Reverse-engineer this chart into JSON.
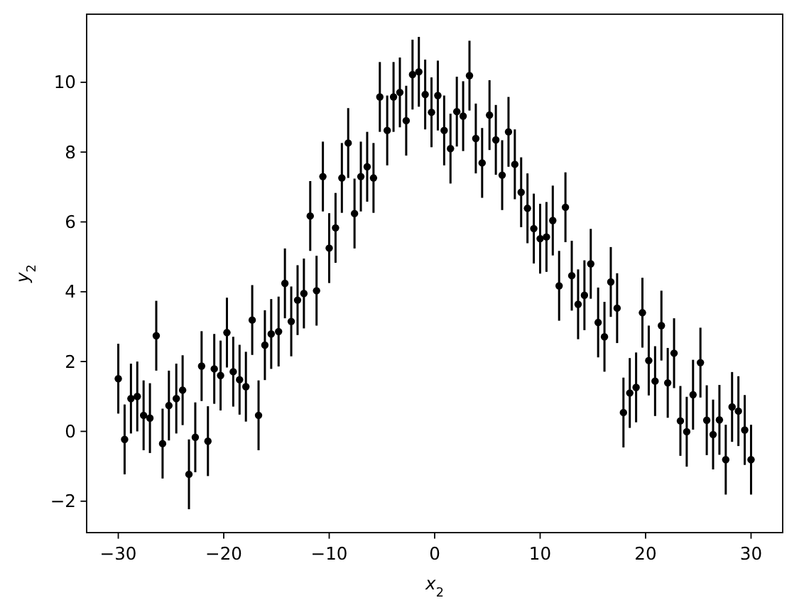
{
  "chart_data": {
    "type": "scatter",
    "xlabel": "x$_{2}$",
    "ylabel": "y$_{2}$",
    "color": "#000000",
    "marker": "circle",
    "xlim": [
      -33,
      33
    ],
    "ylim": [
      -2.9,
      11.95
    ],
    "xticks": [
      -30,
      -20,
      -10,
      0,
      10,
      20,
      30
    ],
    "yticks": [
      -2,
      0,
      2,
      4,
      6,
      8,
      10
    ],
    "x": [
      -30,
      -29.4,
      -28.8,
      -28.2,
      -27.6,
      -27,
      -26.4,
      -25.8,
      -25.2,
      -24.5,
      -23.9,
      -23.3,
      -22.7,
      -22.1,
      -21.5,
      -20.9,
      -20.3,
      -19.7,
      -19.1,
      -18.5,
      -17.9,
      -17.3,
      -16.7,
      -16.1,
      -15.5,
      -14.8,
      -14.2,
      -13.6,
      -13,
      -12.4,
      -11.8,
      -11.2,
      -10.6,
      -10,
      -9.4,
      -8.8,
      -8.2,
      -7.6,
      -7,
      -6.4,
      -5.8,
      -5.2,
      -4.5,
      -3.9,
      -3.3,
      -2.7,
      -2.1,
      -1.5,
      -0.9,
      -0.3,
      0.3,
      0.9,
      1.5,
      2.1,
      2.7,
      3.3,
      3.9,
      4.5,
      5.2,
      5.8,
      6.4,
      7,
      7.6,
      8.2,
      8.8,
      9.4,
      10,
      10.6,
      11.2,
      11.8,
      12.4,
      13,
      13.6,
      14.2,
      14.8,
      15.5,
      16.1,
      16.7,
      17.3,
      17.9,
      18.5,
      19.1,
      19.7,
      20.3,
      20.9,
      21.5,
      22.1,
      22.7,
      23.3,
      23.9,
      24.5,
      25.2,
      25.8,
      26.4,
      27,
      27.6,
      28.2,
      28.8,
      29.4,
      30
    ],
    "values": [
      1.51,
      -0.23,
      0.94,
      1.0,
      0.46,
      0.38,
      2.74,
      -0.35,
      0.74,
      0.94,
      1.18,
      -1.23,
      -0.17,
      1.87,
      -0.28,
      1.79,
      1.6,
      2.83,
      1.71,
      1.48,
      1.28,
      3.19,
      0.46,
      2.47,
      2.79,
      2.86,
      4.24,
      3.15,
      3.76,
      3.95,
      6.17,
      4.03,
      7.3,
      5.25,
      5.83,
      7.26,
      8.26,
      6.24,
      7.3,
      7.58,
      7.26,
      9.58,
      8.62,
      9.58,
      9.71,
      8.9,
      10.22,
      10.3,
      9.65,
      9.14,
      9.62,
      8.62,
      8.1,
      9.16,
      9.03,
      10.19,
      8.39,
      7.69,
      9.06,
      8.35,
      7.34,
      8.58,
      7.65,
      6.85,
      6.39,
      5.81,
      5.52,
      5.57,
      6.04,
      4.17,
      6.42,
      4.46,
      3.64,
      3.9,
      4.8,
      3.12,
      2.71,
      4.28,
      3.53,
      0.54,
      1.1,
      1.26,
      3.4,
      2.03,
      1.44,
      3.03,
      1.39,
      2.24,
      0.3,
      -0.01,
      1.05,
      1.97,
      0.32,
      -0.09,
      0.33,
      -0.81,
      0.7,
      0.58,
      0.04,
      -0.81
    ],
    "errors": [
      1,
      1,
      1,
      1,
      1,
      1,
      1,
      1,
      1,
      1,
      1,
      1,
      1,
      1,
      1,
      1,
      1,
      1,
      1,
      1,
      1,
      1,
      1,
      1,
      1,
      1,
      1,
      1,
      1,
      1,
      1,
      1,
      1,
      1,
      1,
      1,
      1,
      1,
      1,
      1,
      1,
      1,
      1,
      1,
      1,
      1,
      1,
      1,
      1,
      1,
      1,
      1,
      1,
      1,
      1,
      1,
      1,
      1,
      1,
      1,
      1,
      1,
      1,
      1,
      1,
      1,
      1,
      1,
      1,
      1,
      1,
      1,
      1,
      1,
      1,
      1,
      1,
      1,
      1,
      1,
      1,
      1,
      1,
      1,
      1,
      1,
      1,
      1,
      1,
      1,
      1,
      1,
      1,
      1,
      1,
      1,
      1,
      1,
      1,
      1
    ]
  }
}
